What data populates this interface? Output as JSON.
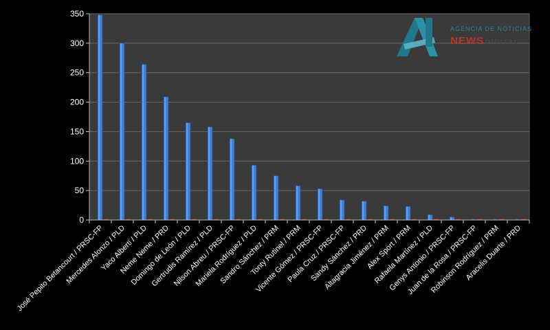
{
  "chart_data": {
    "type": "bar",
    "title": "",
    "xlabel": "",
    "ylabel": "",
    "ylim": [
      0,
      350
    ],
    "yticks": [
      0,
      50,
      100,
      150,
      200,
      250,
      300,
      350
    ],
    "grid": true,
    "categories": [
      "José Pepito Betancourt / PRSC-FP",
      "Mercedes Alonzo / PLD",
      "Yaco Alberti / PLD",
      "Neme Neme / PRD",
      "Domingo de León / PLD",
      "Gertrudis Ramírez / PLD",
      "Nilson Abreu / PRSC-FP",
      "Mariela Rodríguez / PLD",
      "Sandro Sánchez / PRM",
      "Tonty Rutinel / PRM",
      "Vicente Gómez / PRSC-FP",
      "Paula Cruz / PRSC-FP",
      "Sandy Sánchez / PRD",
      "Altagracia Jiménez / PRM",
      "Alex Sport / PRM",
      "Rafaela Martínez / PLD",
      "Genys Antonio / PRSC-FP",
      "Juan de la Rosa / PRSC-FP",
      "Robinson Rodríguez / PRM",
      "Aracelis Duarte / PRD"
    ],
    "series": [
      {
        "values": [
          348,
          300,
          264,
          209,
          165,
          158,
          138,
          93,
          75,
          58,
          53,
          34,
          32,
          24,
          23,
          9,
          5,
          1,
          1,
          1
        ],
        "color": "#3f7fd4"
      },
      {
        "values": [
          0.5,
          0.5,
          0.5,
          0.5,
          0.5,
          0.5,
          0.5,
          0.5,
          0.5,
          0.5,
          0.5,
          0.5,
          0.5,
          0.5,
          0.5,
          0.5,
          0.5,
          0.5,
          0.5,
          0.5
        ],
        "color": "#c0392b"
      }
    ],
    "colors": {
      "background": "#000000",
      "plot_area": "#3a3a3a",
      "gridline": "#6a6a6a",
      "text": "#ffffff"
    }
  },
  "logo": {
    "top_text": "AGENCIA DE NOTICIAS",
    "news_text": "NEWS",
    "digital_text": "DIGITAL"
  }
}
